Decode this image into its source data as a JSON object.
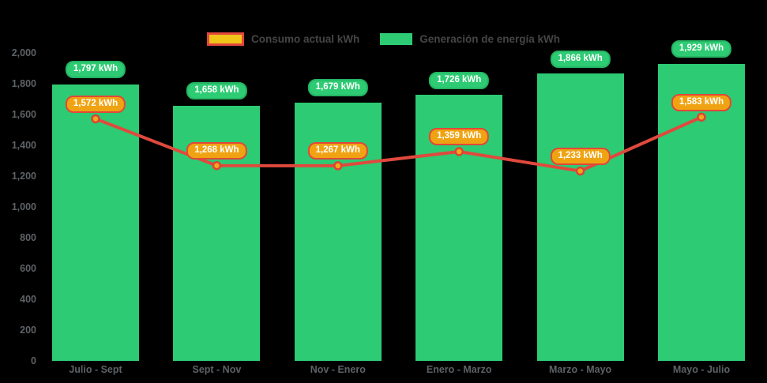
{
  "page": {
    "background": "#000000"
  },
  "legend": {
    "position": "top-center",
    "text_color": "#454545",
    "items": [
      {
        "label": "Consumo actual kWh",
        "swatch_fill": "#F0C419",
        "swatch_border": "#E2473C"
      },
      {
        "label": "Generación de energía kWh",
        "swatch_fill": "#2DCB73",
        "swatch_border": "#2DCB73"
      }
    ]
  },
  "chart_data": {
    "type": "bar+line",
    "title": "",
    "xlabel": "",
    "ylabel": "",
    "unit": "kWh",
    "categories": [
      "Julio - Sept",
      "Sept - Nov",
      "Nov - Enero",
      "Enero - Marzo",
      "Marzo - Mayo",
      "Mayo - Julio"
    ],
    "series": [
      {
        "name": "Generación de energía kWh",
        "type": "bar",
        "values": [
          1797,
          1658,
          1679,
          1726,
          1866,
          1929
        ],
        "value_labels": [
          "1,797 kWh",
          "1,658 kWh",
          "1,679 kWh",
          "1,726 kWh",
          "1,866 kWh",
          "1,929 kWh"
        ],
        "color": "#2DCB73",
        "label_bg": "#2DCB73",
        "label_border": "#25B563",
        "label_text_color": "#FFFFFF"
      },
      {
        "name": "Consumo actual kWh",
        "type": "line",
        "values": [
          1572,
          1268,
          1267,
          1359,
          1233,
          1583
        ],
        "value_labels": [
          "1,572 kWh",
          "1,268 kWh",
          "1,267 kWh",
          "1,359 kWh",
          "1,233 kWh",
          "1,583 kWh"
        ],
        "color": "#E0493D",
        "marker_fill": "#F0A818",
        "marker_border": "#DB4437",
        "label_bg": "#F0A312",
        "label_border": "#E0473A",
        "label_text_color": "#FFFFFF"
      }
    ],
    "ylim": [
      0,
      2000
    ],
    "ytick_step": 200,
    "ytick_labels": [
      "0",
      "200",
      "400",
      "600",
      "800",
      "1,000",
      "1,200",
      "1,400",
      "1,600",
      "1,800",
      "2,000"
    ],
    "axis_text_color": "#5D6266",
    "grid": false,
    "legend_position": "top"
  }
}
